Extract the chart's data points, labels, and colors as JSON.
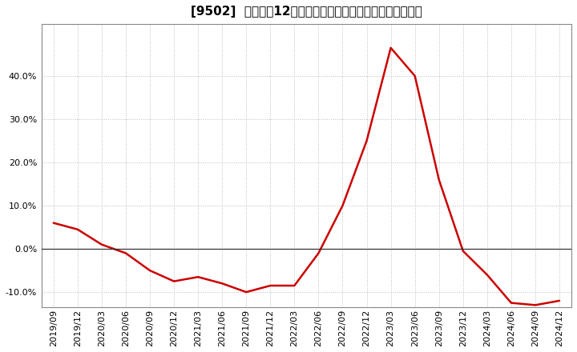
{
  "title": "[9502]  売上高の12か月移動合計の対前年同期増減率の推移",
  "line_color": "#cc0000",
  "background_color": "#ffffff",
  "plot_bg_color": "#ffffff",
  "grid_color": "#bbbbbb",
  "zero_line_color": "#333333",
  "ylim": [
    -0.135,
    0.52
  ],
  "yticks": [
    -0.1,
    0.0,
    0.1,
    0.2,
    0.3,
    0.4
  ],
  "x_labels": [
    "2019/09",
    "2019/12",
    "2020/03",
    "2020/06",
    "2020/09",
    "2020/12",
    "2021/03",
    "2021/06",
    "2021/09",
    "2021/12",
    "2022/03",
    "2022/06",
    "2022/09",
    "2022/12",
    "2023/03",
    "2023/06",
    "2023/09",
    "2023/12",
    "2024/03",
    "2024/06",
    "2024/09",
    "2024/12"
  ],
  "values": [
    0.06,
    0.045,
    0.01,
    -0.01,
    -0.05,
    -0.075,
    -0.065,
    -0.08,
    -0.1,
    -0.085,
    -0.085,
    -0.01,
    0.1,
    0.25,
    0.465,
    0.4,
    0.16,
    -0.005,
    -0.06,
    -0.125,
    -0.13,
    -0.12
  ],
  "title_fontsize": 11,
  "tick_fontsize": 8,
  "line_width": 1.8
}
